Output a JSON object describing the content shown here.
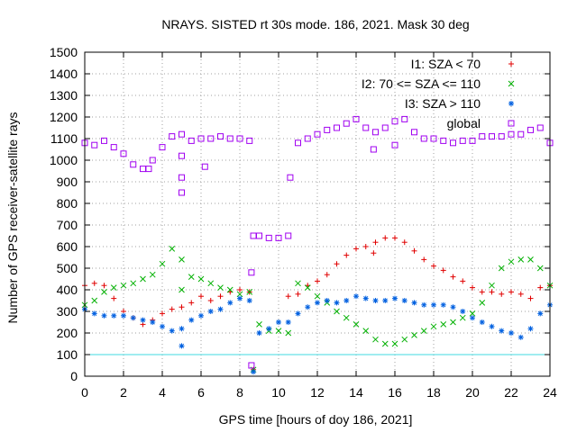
{
  "chart_data": {
    "type": "scatter",
    "title": "NRAYS. SISTED rt 30s mode. 186, 2021. Mask 30 deg",
    "xlabel": "GPS time [hours of doy 186, 2021]",
    "ylabel": "Number of GPS receiver-satellite rays",
    "xlim": [
      0,
      24
    ],
    "ylim": [
      0,
      1500
    ],
    "xticks": [
      0,
      2,
      4,
      6,
      8,
      10,
      12,
      14,
      16,
      18,
      20,
      22,
      24
    ],
    "yticks": [
      0,
      100,
      200,
      300,
      400,
      500,
      600,
      700,
      800,
      900,
      1000,
      1100,
      1200,
      1300,
      1400,
      1500
    ],
    "grid": "dotted",
    "legend_position": "top-right",
    "reference_line": {
      "y": 100,
      "color": "#40d8e0"
    },
    "series": [
      {
        "name": "I1: SZA < 70",
        "marker": "+",
        "color": "#e00000",
        "x": [
          0,
          0.5,
          1,
          1.5,
          2,
          2.5,
          3,
          3.5,
          4,
          4.5,
          5,
          5.5,
          6,
          6.5,
          7,
          7.5,
          8,
          8.5,
          8.7,
          10.5,
          11,
          11.5,
          12,
          12.5,
          13,
          13.5,
          14,
          14.5,
          15,
          15.5,
          16,
          16.5,
          17,
          17.5,
          18,
          18.5,
          19,
          19.5,
          20,
          20.5,
          21,
          21.5,
          22,
          22.5,
          23,
          23.5,
          24,
          14.9
        ],
        "y": [
          420,
          430,
          420,
          360,
          300,
          270,
          240,
          260,
          290,
          310,
          320,
          340,
          370,
          350,
          370,
          390,
          400,
          390,
          30,
          370,
          380,
          420,
          440,
          470,
          520,
          560,
          590,
          600,
          620,
          640,
          640,
          620,
          580,
          540,
          510,
          490,
          460,
          440,
          410,
          390,
          390,
          380,
          390,
          380,
          360,
          410,
          420,
          570
        ]
      },
      {
        "name": "I2: 70 <= SZA <= 110",
        "marker": "x",
        "color": "#00b000",
        "x": [
          0,
          0.5,
          1,
          1.5,
          2,
          2.5,
          3,
          3.5,
          4,
          4.5,
          5,
          5.5,
          6,
          6.5,
          7,
          7.5,
          8,
          8.5,
          8.7,
          9,
          9.5,
          10,
          10.5,
          11,
          11.5,
          12,
          12.5,
          13,
          13.5,
          14,
          14.5,
          15,
          15.5,
          16,
          16.5,
          17,
          17.5,
          18,
          18.5,
          19,
          19.5,
          20,
          20.5,
          21,
          21.5,
          22,
          22.5,
          23,
          23.5,
          24,
          5
        ],
        "y": [
          330,
          350,
          390,
          410,
          420,
          430,
          450,
          470,
          520,
          590,
          540,
          460,
          450,
          430,
          410,
          400,
          380,
          390,
          30,
          240,
          210,
          210,
          200,
          430,
          410,
          370,
          340,
          300,
          270,
          240,
          210,
          170,
          150,
          150,
          170,
          190,
          210,
          230,
          240,
          250,
          270,
          290,
          340,
          420,
          500,
          530,
          540,
          540,
          500,
          420,
          400
        ]
      },
      {
        "name": "I3: SZA > 110",
        "marker": "*",
        "color": "#0060e0",
        "x": [
          0,
          0.5,
          1,
          1.5,
          2,
          2.5,
          3,
          3.5,
          4,
          4.5,
          5,
          5.5,
          6,
          6.5,
          7,
          7.5,
          8,
          8.5,
          8.7,
          9,
          9.5,
          10,
          10.5,
          11,
          11.5,
          12,
          12.5,
          13,
          13.5,
          14,
          14.5,
          15,
          15.5,
          16,
          16.5,
          17,
          17.5,
          18,
          18.5,
          19,
          19.5,
          20,
          20.5,
          21,
          21.5,
          22,
          22.5,
          23,
          23.5,
          24,
          5
        ],
        "y": [
          310,
          290,
          280,
          280,
          280,
          270,
          260,
          250,
          230,
          210,
          220,
          260,
          280,
          300,
          310,
          340,
          360,
          350,
          20,
          200,
          220,
          250,
          250,
          290,
          320,
          340,
          350,
          340,
          350,
          370,
          360,
          350,
          350,
          360,
          350,
          340,
          330,
          330,
          330,
          320,
          300,
          270,
          250,
          230,
          210,
          200,
          180,
          220,
          290,
          330,
          140
        ]
      },
      {
        "name": "global",
        "marker": "square",
        "color": "#a000f0",
        "x": [
          0,
          0.5,
          1,
          1.5,
          2,
          2.5,
          3,
          3.3,
          3.5,
          4,
          4.5,
          5,
          5.5,
          6,
          6.5,
          7,
          7.5,
          8,
          8.5,
          8.6,
          8.7,
          9,
          9.5,
          10,
          10.5,
          11,
          11.5,
          12,
          12.5,
          13,
          13.5,
          14,
          14.5,
          15,
          15.5,
          16,
          16.5,
          17,
          17.5,
          18,
          18.5,
          19,
          19.5,
          20,
          20.5,
          21,
          21.5,
          22,
          22.5,
          23,
          23.5,
          24,
          5,
          5,
          5,
          6.2,
          10.6,
          14.9,
          16,
          8.6
        ],
        "y": [
          1080,
          1070,
          1090,
          1060,
          1030,
          980,
          960,
          960,
          1000,
          1060,
          1110,
          1120,
          1090,
          1100,
          1100,
          1110,
          1100,
          1100,
          1090,
          50,
          650,
          650,
          640,
          640,
          650,
          1080,
          1100,
          1120,
          1140,
          1150,
          1170,
          1190,
          1150,
          1130,
          1150,
          1180,
          1190,
          1130,
          1100,
          1100,
          1090,
          1080,
          1090,
          1090,
          1110,
          1110,
          1110,
          1120,
          1120,
          1140,
          1150,
          1080,
          850,
          920,
          1020,
          970,
          920,
          1050,
          1070,
          480
        ]
      }
    ]
  }
}
